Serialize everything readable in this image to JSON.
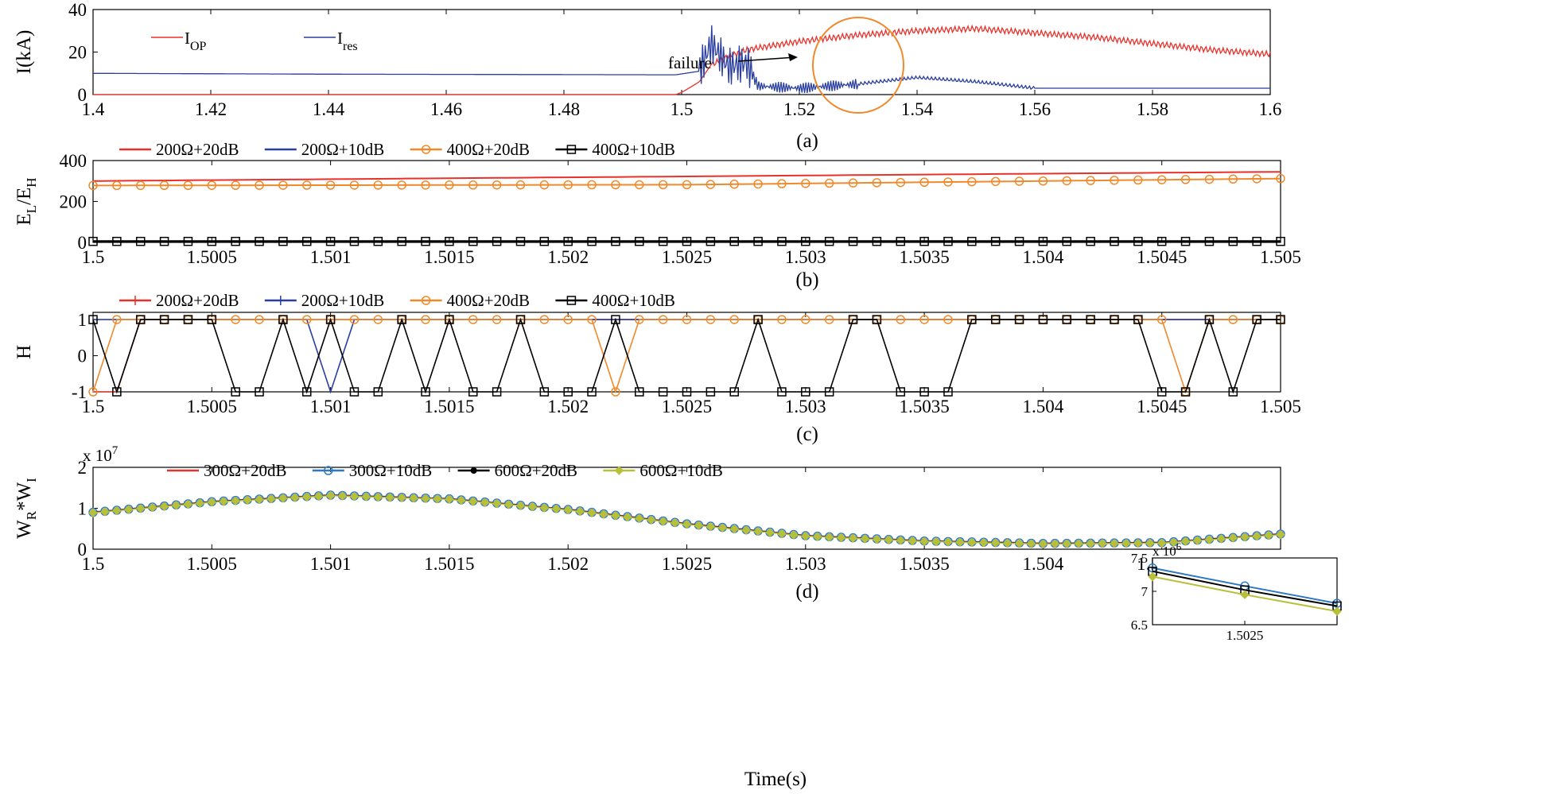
{
  "xlabel": "Time(s)",
  "chart_data": [
    {
      "id": "a",
      "type": "line",
      "caption": "(a)",
      "ylabel": "I(kA)",
      "xlim": [
        1.4,
        1.6
      ],
      "ylim": [
        0,
        40
      ],
      "xticks": [
        "1.4",
        "1.42",
        "1.44",
        "1.46",
        "1.48",
        "1.5",
        "1.52",
        "1.54",
        "1.56",
        "1.58",
        "1.6"
      ],
      "yticks": [
        "0",
        "20",
        "40"
      ],
      "legend": [
        {
          "main": "I",
          "sub": "OP",
          "color": "#e8312a"
        },
        {
          "main": "I",
          "sub": "res",
          "color": "#2a3fa0"
        }
      ],
      "annotation": "failure",
      "series": [
        {
          "name": "I_OP",
          "color": "#e8312a",
          "x": [
            1.4,
            1.499,
            1.5,
            1.503,
            1.505,
            1.508,
            1.511,
            1.513,
            1.52,
            1.53,
            1.54,
            1.55,
            1.56,
            1.57,
            1.58,
            1.59,
            1.6
          ],
          "y": [
            0,
            0,
            1,
            6,
            14,
            18,
            21,
            22,
            25,
            28,
            30,
            31,
            29,
            27,
            24,
            21,
            19
          ]
        },
        {
          "name": "I_res",
          "color": "#2a3fa0",
          "x": [
            1.4,
            1.42,
            1.44,
            1.46,
            1.48,
            1.499,
            1.503,
            1.505,
            1.508,
            1.511,
            1.513,
            1.52,
            1.53,
            1.54,
            1.55,
            1.56,
            1.58,
            1.6
          ],
          "y": [
            10,
            9.8,
            9.6,
            9.5,
            9.4,
            9.3,
            11,
            24,
            13,
            15,
            4,
            3,
            5,
            8,
            6,
            3,
            3,
            3
          ]
        }
      ]
    },
    {
      "id": "b",
      "type": "line",
      "caption": "(b)",
      "ylabel": "E_L/E_H",
      "xlim": [
        1.5,
        1.505
      ],
      "ylim": [
        0,
        400
      ],
      "xticks": [
        "1.5",
        "1.5005",
        "1.501",
        "1.5015",
        "1.502",
        "1.5025",
        "1.503",
        "1.5035",
        "1.504",
        "1.5045",
        "1.505"
      ],
      "yticks": [
        "0",
        "200",
        "400"
      ],
      "legend": [
        {
          "label": "200Ω+20dB",
          "color": "#e8312a",
          "marker": "none"
        },
        {
          "label": "200Ω+10dB",
          "color": "#2a3fa0",
          "marker": "none"
        },
        {
          "label": "400Ω+20dB",
          "color": "#ef8a2c",
          "marker": "circle"
        },
        {
          "label": "400Ω+10dB",
          "color": "#000000",
          "marker": "square"
        }
      ],
      "series": [
        {
          "name": "200Ω+20dB",
          "x": [
            1.5,
            1.505
          ],
          "y": [
            300,
            345
          ]
        },
        {
          "name": "200Ω+10dB",
          "x": [
            1.5,
            1.505
          ],
          "y": [
            4,
            4
          ]
        },
        {
          "name": "400Ω+20dB",
          "x": [
            1.5,
            1.5025,
            1.505
          ],
          "y": [
            278,
            282,
            312
          ]
        },
        {
          "name": "400Ω+10dB",
          "x": [
            1.5,
            1.505
          ],
          "y": [
            5,
            5
          ]
        }
      ]
    },
    {
      "id": "c",
      "type": "line",
      "caption": "(c)",
      "ylabel": "H",
      "xlim": [
        1.5,
        1.505
      ],
      "ylim": [
        -1,
        1.2
      ],
      "xticks": [
        "1.5",
        "1.5005",
        "1.501",
        "1.5015",
        "1.502",
        "1.5025",
        "1.503",
        "1.5035",
        "1.504",
        "1.5045",
        "1.505"
      ],
      "yticks": [
        "-1",
        "0",
        "1"
      ],
      "legend": [
        {
          "label": "200Ω+20dB",
          "color": "#e8312a",
          "marker": "plus"
        },
        {
          "label": "200Ω+10dB",
          "color": "#2a3fa0",
          "marker": "plus"
        },
        {
          "label": "400Ω+20dB",
          "color": "#ef8a2c",
          "marker": "circle"
        },
        {
          "label": "400Ω+10dB",
          "color": "#000000",
          "marker": "square"
        }
      ],
      "step": 0.0001,
      "series": [
        {
          "name": "200Ω+20dB",
          "color": "#e8312a",
          "marker": "none",
          "values": [
            -1,
            -1,
            1,
            1,
            1,
            1,
            1,
            1,
            1,
            1,
            1,
            1,
            1,
            1,
            1,
            1,
            1,
            1,
            1,
            1,
            1,
            1,
            1,
            1,
            1,
            1,
            1,
            1,
            1,
            1,
            1,
            1,
            1,
            1,
            1,
            1,
            1,
            1,
            1,
            1,
            1,
            1,
            1,
            1,
            1,
            1,
            1,
            1,
            1,
            1,
            1
          ]
        },
        {
          "name": "200Ω+10dB",
          "color": "#2a3fa0",
          "marker": "none",
          "values": [
            1,
            1,
            1,
            1,
            1,
            1,
            1,
            1,
            1,
            1,
            -1,
            1,
            1,
            1,
            1,
            1,
            1,
            1,
            1,
            1,
            1,
            1,
            1,
            1,
            1,
            1,
            1,
            1,
            1,
            1,
            1,
            1,
            1,
            1,
            1,
            1,
            1,
            1,
            1,
            1,
            1,
            1,
            1,
            1,
            1,
            1,
            1,
            1,
            1,
            1,
            1
          ]
        },
        {
          "name": "400Ω+20dB",
          "color": "#ef8a2c",
          "marker": "circle",
          "values": [
            -1,
            1,
            1,
            1,
            1,
            1,
            1,
            1,
            1,
            1,
            1,
            1,
            1,
            1,
            1,
            1,
            1,
            1,
            1,
            1,
            1,
            1,
            -1,
            1,
            1,
            1,
            1,
            1,
            1,
            1,
            1,
            1,
            1,
            1,
            1,
            1,
            1,
            1,
            1,
            1,
            1,
            1,
            1,
            1,
            1,
            1,
            -1,
            1,
            1,
            1,
            1
          ]
        },
        {
          "name": "400Ω+10dB",
          "color": "#000000",
          "marker": "square",
          "values": [
            1,
            -1,
            1,
            1,
            1,
            1,
            -1,
            -1,
            1,
            -1,
            1,
            -1,
            -1,
            1,
            -1,
            1,
            -1,
            -1,
            1,
            -1,
            -1,
            -1,
            1,
            -1,
            -1,
            -1,
            -1,
            -1,
            1,
            -1,
            -1,
            -1,
            1,
            1,
            -1,
            -1,
            -1,
            1,
            1,
            1,
            1,
            1,
            1,
            1,
            1,
            -1,
            -1,
            1,
            -1,
            1,
            1
          ]
        }
      ]
    },
    {
      "id": "d",
      "type": "line",
      "caption": "(d)",
      "ylabel": "W_R*W_I",
      "y_multiplier": "x 10^7",
      "xlim": [
        1.5,
        1.505
      ],
      "ylim": [
        0,
        2
      ],
      "xticks": [
        "1.5",
        "1.5005",
        "1.501",
        "1.5015",
        "1.502",
        "1.5025",
        "1.503",
        "1.5035",
        "1.504",
        "1.5045",
        "1.505"
      ],
      "yticks": [
        "0",
        "1",
        "2"
      ],
      "legend": [
        {
          "label": "300Ω+20dB",
          "color": "#e8312a",
          "marker": "none"
        },
        {
          "label": "300Ω+10dB",
          "color": "#2f79c4",
          "marker": "circle"
        },
        {
          "label": "600Ω+20dB",
          "color": "#000000",
          "marker": "dot"
        },
        {
          "label": "600Ω+10dB",
          "color": "#b8bf38",
          "marker": "diamond"
        }
      ],
      "x_keys": [
        1.5,
        1.5005,
        1.501,
        1.5015,
        1.502,
        1.5025,
        1.503,
        1.5035,
        1.504,
        1.5045,
        1.505
      ],
      "y_keys": [
        0.9,
        1.16,
        1.32,
        1.23,
        0.97,
        0.62,
        0.33,
        0.2,
        0.14,
        0.16,
        0.37
      ],
      "inset": {
        "multiplier": "x 10^6",
        "xlim": [
          1.5022,
          1.5028
        ],
        "ylim": [
          6.5,
          7.5
        ],
        "xticks": [
          "1.5025"
        ],
        "yticks": [
          "6.5",
          "7",
          "7.5"
        ],
        "series": [
          {
            "name": "300Ω+10dB",
            "color": "#2f79c4",
            "y": [
              7.35,
              7.08,
              6.82
            ]
          },
          {
            "name": "600Ω+20dB",
            "color": "#000000",
            "y": [
              7.3,
              7.02,
              6.78
            ]
          },
          {
            "name": "600Ω+10dB",
            "color": "#b8bf38",
            "y": [
              7.22,
              6.95,
              6.7
            ]
          }
        ]
      }
    }
  ]
}
